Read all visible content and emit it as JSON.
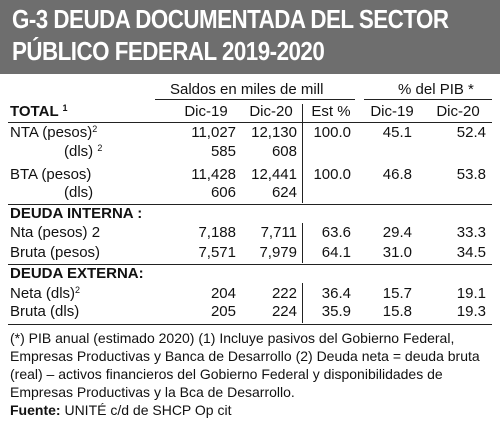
{
  "header": {
    "line1": "G-3 DEUDA DOCUMENTADA DEL SECTOR",
    "line2": "PÚBLICO FEDERAL  2019-2020"
  },
  "columns": {
    "group1": "Saldos en miles de mill",
    "group2": "% del PIB *",
    "headers": [
      "Dic-19",
      "Dic-20",
      "Est %",
      "Dic-19",
      "Dic-20"
    ]
  },
  "sections": {
    "total": {
      "title": "TOTAL",
      "note": "1"
    },
    "interna": {
      "title": "DEUDA INTERNA :"
    },
    "externa": {
      "title": "DEUDA EXTERNA:"
    }
  },
  "rows": [
    {
      "label": "NTA (pesos)",
      "sup": "2",
      "values": [
        "11,027",
        "12,130",
        "100.0",
        "45.1",
        "52.4"
      ]
    },
    {
      "label": "(dls)",
      "sup": "2",
      "values": [
        "585",
        "608",
        "",
        "",
        ""
      ]
    },
    {
      "label": "BTA (pesos)",
      "sup": "",
      "values": [
        "11,428",
        "12,441",
        "100.0",
        "46.8",
        "53.8"
      ]
    },
    {
      "label": "(dls)",
      "sup": "",
      "values": [
        "606",
        "624",
        "",
        "",
        ""
      ]
    },
    {
      "label": "Nta (pesos) 2",
      "sup": "",
      "values": [
        "7,188",
        "7,711",
        "63.6",
        "29.4",
        "33.3"
      ]
    },
    {
      "label": "Bruta (pesos)",
      "sup": "",
      "values": [
        "7,571",
        "7,979",
        "64.1",
        "31.0",
        "34.5"
      ]
    },
    {
      "label": "Neta  (dls)",
      "sup": "2",
      "values": [
        "204",
        "222",
        "36.4",
        "15.7",
        "19.1"
      ]
    },
    {
      "label": "Bruta (dls)",
      "sup": "",
      "values": [
        "205",
        "224",
        "35.9",
        "15.8",
        "19.3"
      ]
    }
  ],
  "footnote": {
    "text": "(*) PIB anual (estimado 2020) (1) Incluye pasivos del Gobierno Federal, Empresas Productivas y Banca de Desarrollo (2) Deuda neta = deuda bruta (real) – activos financieros del Gobierno Federal y disponibilidades de Empresas Productivas y la Bca de Desarrollo.",
    "source_label": "Fuente:",
    "source_text": " UNITÉ c/d de SHCP Op cit"
  }
}
